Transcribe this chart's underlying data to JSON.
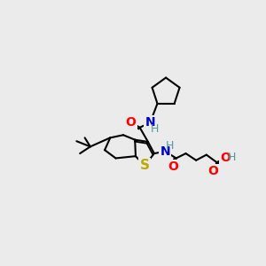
{
  "bg_color": "#ebebeb",
  "bond_color": "#000000",
  "bond_width": 1.5,
  "atom_colors": {
    "O": "#ff0000",
    "N": "#0000cc",
    "S": "#bbaa00",
    "H": "#559999",
    "C": "#000000"
  },
  "font_size_atom": 10,
  "font_size_small": 8.5
}
